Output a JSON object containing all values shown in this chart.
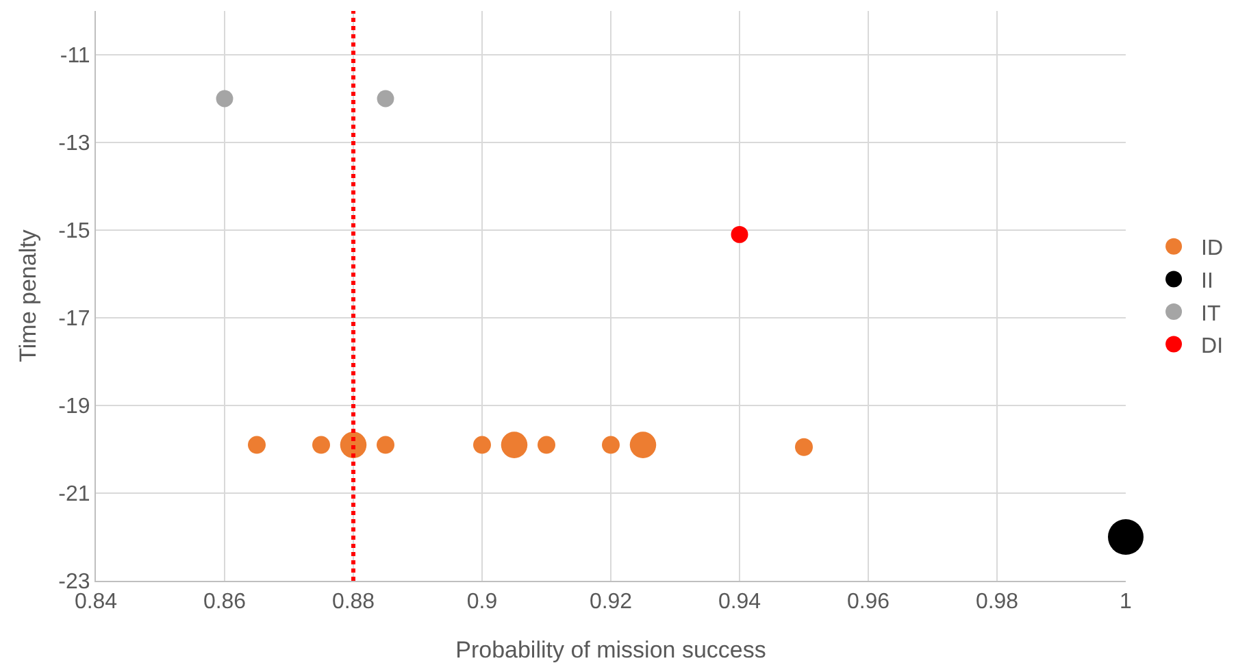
{
  "chart_data": {
    "type": "bubble",
    "xlabel": "Probability of mission success",
    "ylabel": "Time penalty",
    "xlim": [
      0.84,
      1
    ],
    "xticks": [
      0.84,
      0.86,
      0.88,
      {
        "value": 0.9,
        "label": "0.9"
      },
      0.92,
      0.94,
      0.96,
      0.98,
      {
        "value": 1,
        "label": "1"
      }
    ],
    "ylim": [
      -23,
      -10
    ],
    "yticks": [
      -23,
      -21,
      -19,
      -17,
      -15,
      -13,
      -11
    ],
    "grid": true,
    "legend": "right",
    "marker": "circle",
    "ref_lines": [
      {
        "axis": "x",
        "value": 0.88,
        "color": "#ff0000",
        "line_style": "dotted"
      }
    ],
    "series": [
      {
        "name": "ID",
        "color": "#ed7d31",
        "x": [
          0.865,
          0.875,
          0.88,
          0.885,
          0.9,
          0.905,
          0.91,
          0.92,
          0.925,
          0.95
        ],
        "values": [
          -19.9,
          -19.9,
          -19.9,
          -19.9,
          -19.9,
          -19.9,
          -19.9,
          -19.9,
          -19.9,
          -19.95
        ],
        "sizes": [
          0.25,
          0.25,
          0.55,
          0.25,
          0.25,
          0.55,
          0.25,
          0.25,
          0.55,
          0.25
        ]
      },
      {
        "name": "II",
        "color": "#000000",
        "x": [
          1
        ],
        "values": [
          -22
        ],
        "sizes": [
          1
        ]
      },
      {
        "name": "IT",
        "color": "#a5a5a5",
        "x": [
          0.86,
          0.885
        ],
        "values": [
          -12,
          -12
        ],
        "sizes": [
          0.23,
          0.23
        ]
      },
      {
        "name": "DI",
        "color": "#ff0000",
        "x": [
          0.94
        ],
        "values": [
          -15.1
        ],
        "sizes": [
          0.23
        ]
      }
    ]
  }
}
